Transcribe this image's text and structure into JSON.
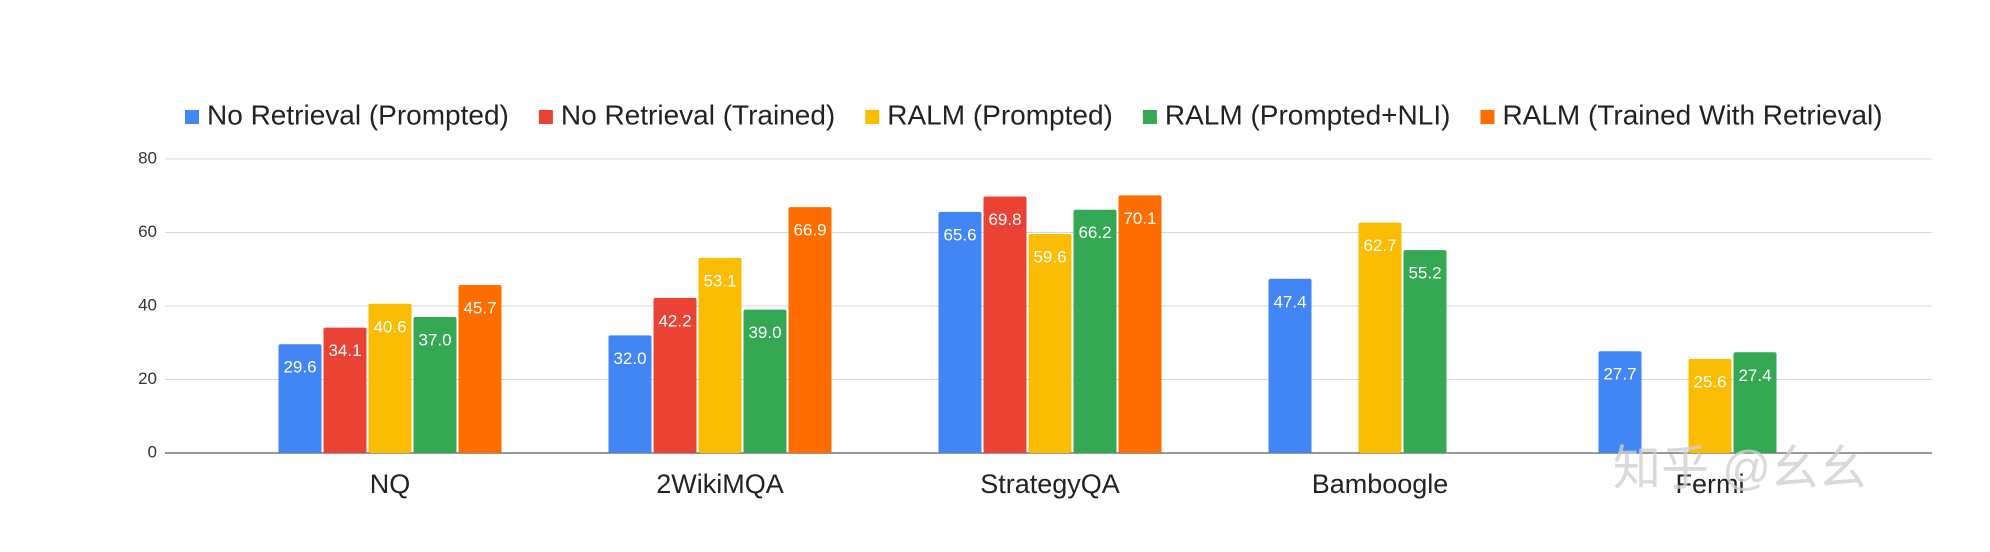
{
  "chart_data": {
    "type": "bar",
    "categories": [
      "NQ",
      "2WikiMQA",
      "StrategyQA",
      "Bamboogle",
      "Fermi"
    ],
    "series": [
      {
        "name": "No Retrieval (Prompted)",
        "color": "#4285f4",
        "values": [
          29.6,
          32.0,
          65.6,
          47.4,
          27.7
        ],
        "value_labels": [
          "29.6",
          "32.0",
          "65.6",
          "47.4",
          "27.7"
        ]
      },
      {
        "name": "No Retrieval (Trained)",
        "color": "#ea4335",
        "values": [
          34.1,
          42.2,
          69.8,
          null,
          null
        ],
        "value_labels": [
          "34.1",
          "42.2",
          "69.8",
          null,
          null
        ]
      },
      {
        "name": "RALM (Prompted)",
        "color": "#fbbc04",
        "values": [
          40.6,
          53.1,
          59.6,
          62.7,
          25.6
        ],
        "value_labels": [
          "40.6",
          "53.1",
          "59.6",
          "62.7",
          "25.6"
        ]
      },
      {
        "name": "RALM (Prompted+NLI)",
        "color": "#34a853",
        "values": [
          37.0,
          39.0,
          66.2,
          55.2,
          27.4
        ],
        "value_labels": [
          "37.0",
          "39.0",
          "66.2",
          "55.2",
          "27.4"
        ]
      },
      {
        "name": "RALM (Trained With Retrieval)",
        "color": "#ff6d01",
        "values": [
          45.7,
          66.9,
          70.1,
          null,
          null
        ],
        "value_labels": [
          "45.7",
          "66.9",
          "70.1",
          null,
          null
        ]
      }
    ],
    "ylim": [
      0,
      80
    ],
    "yticks": [
      0,
      20,
      40,
      60,
      80
    ],
    "grid": true,
    "legend": "top",
    "watermark": "知乎 @幺幺"
  }
}
